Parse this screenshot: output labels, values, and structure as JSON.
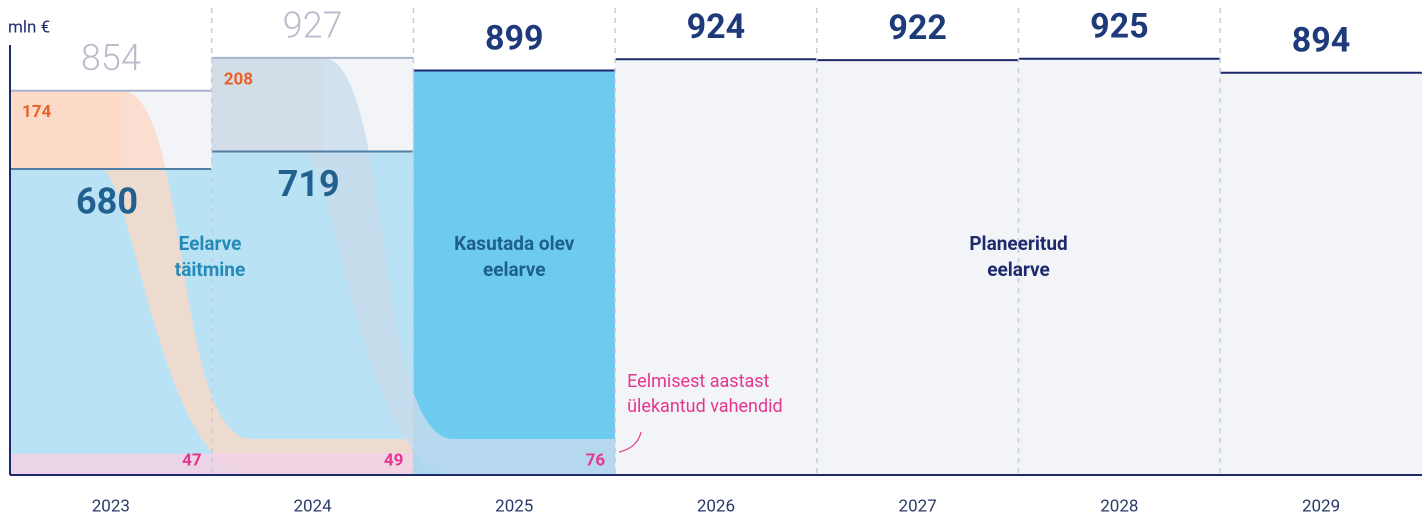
{
  "chart_data": {
    "type": "budget-flow",
    "y_label": "mln €",
    "categories": [
      "2023",
      "2024",
      "2025",
      "2026",
      "2027",
      "2028",
      "2029"
    ],
    "totals": {
      "values": [
        854,
        927,
        899,
        924,
        922,
        925,
        894
      ]
    },
    "series": [
      {
        "name": [
          "Eelarve",
          "täitmine"
        ],
        "color": "#b9e2f5",
        "values": [
          680,
          719,
          null,
          null,
          null,
          null,
          null
        ]
      },
      {
        "color": "#fbdcc8",
        "values": [
          174,
          208,
          null,
          null,
          null,
          null,
          null
        ]
      },
      {
        "name": [
          "Eelmisest aastast",
          "ülekantud vahendid"
        ],
        "color": "#f1d3e3",
        "values": [
          47,
          49,
          76,
          null,
          null,
          null,
          null
        ]
      }
    ],
    "annotations": [
      {
        "text": [
          "Kasutada olev",
          "eelarve"
        ]
      },
      {
        "text": [
          "Planeeritud",
          "eelarve"
        ]
      }
    ],
    "ylim": [
      0,
      1000
    ]
  }
}
